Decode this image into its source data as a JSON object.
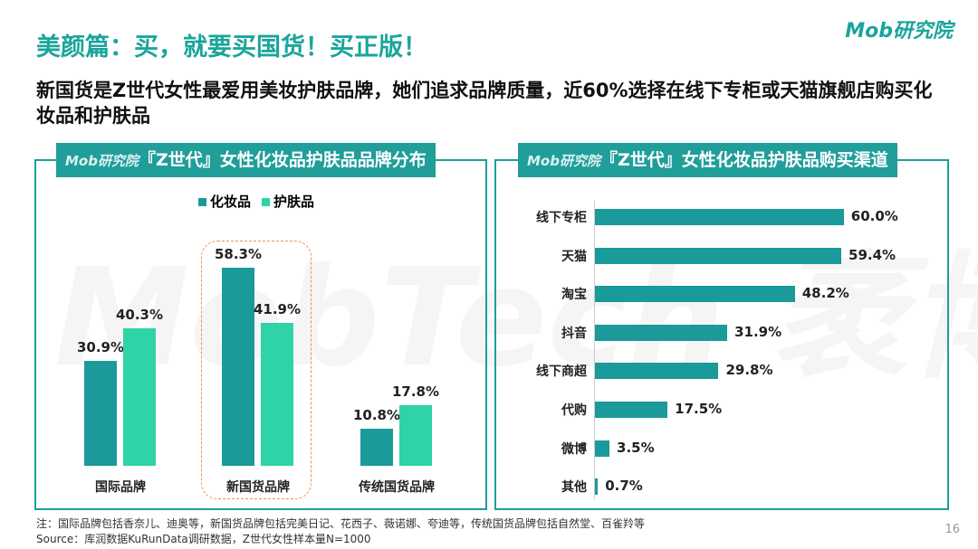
{
  "title": "美颜篇：买，就要买国货！买正版！",
  "logo": "Mob研究院",
  "subtitle": "新国货是Z世代女性最爱用美妆护肤品牌，她们追求品牌质量，近60%选择在线下专柜或天猫旗舰店购买化妆品和护肤品",
  "watermark": "MobTech 袤博",
  "page_number": "16",
  "notes": {
    "note": "注：国际品牌包括香奈儿、迪奥等，新国货品牌包括完美日记、花西子、薇诺娜、夸迪等，传统国货品牌包括自然堂、百雀羚等",
    "source": "Source：库润数据KuRunData调研数据，Z世代女性样本量N=1000"
  },
  "colors": {
    "primary": "#1a9a9a",
    "secondary": "#2ed3a8",
    "title": "#1aa59b"
  },
  "chart_data": [
    {
      "type": "bar",
      "title": "『Z世代』女性化妆品护肤品品牌分布",
      "title_prefix": "Mob研究院",
      "categories": [
        "国际品牌",
        "新国货品牌",
        "传统国货品牌"
      ],
      "series": [
        {
          "name": "化妆品",
          "values": [
            30.9,
            58.3,
            10.8
          ]
        },
        {
          "name": "护肤品",
          "values": [
            40.3,
            41.9,
            17.8
          ]
        }
      ],
      "labels": [
        [
          "30.9%",
          "58.3%",
          "10.8%"
        ],
        [
          "40.3%",
          "41.9%",
          "17.8%"
        ]
      ],
      "legend": "top",
      "highlight": "新国货品牌",
      "unit": "%"
    },
    {
      "type": "bar",
      "orientation": "horizontal",
      "title": "『Z世代』女性化妆品护肤品购买渠道",
      "title_prefix": "Mob研究院",
      "categories": [
        "线下专柜",
        "天猫",
        "淘宝",
        "抖音",
        "线下商超",
        "代购",
        "微博",
        "其他"
      ],
      "values": [
        60.0,
        59.4,
        48.2,
        31.9,
        29.8,
        17.5,
        3.5,
        0.7
      ],
      "labels": [
        "60.0%",
        "59.4%",
        "48.2%",
        "31.9%",
        "29.8%",
        "17.5%",
        "3.5%",
        "0.7%"
      ],
      "unit": "%"
    }
  ]
}
